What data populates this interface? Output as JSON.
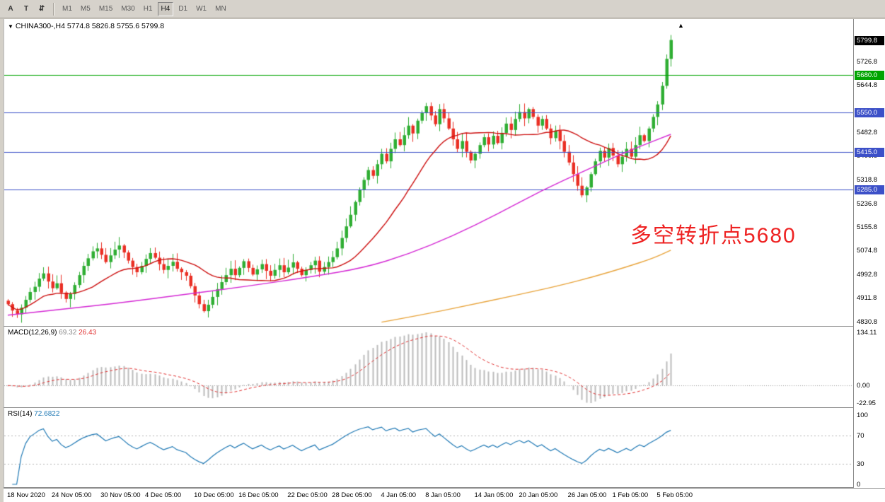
{
  "toolbar": {
    "tools": [
      {
        "name": "cursor-tool-button",
        "label": "A"
      },
      {
        "name": "text-tool-button",
        "label": "T"
      },
      {
        "name": "scroll-tool-button",
        "label": "⇵"
      }
    ],
    "timeframes": [
      {
        "label": "M1"
      },
      {
        "label": "M5"
      },
      {
        "label": "M15"
      },
      {
        "label": "M30"
      },
      {
        "label": "H1"
      },
      {
        "label": "H4",
        "active": true
      },
      {
        "label": "D1"
      },
      {
        "label": "W1"
      },
      {
        "label": "MN"
      }
    ]
  },
  "chart_data": {
    "type": "candlestick",
    "symbol_title": "CHINA300-,H4",
    "ohlc_text": "5774.8 5826.8 5755.6 5799.8",
    "annotation": "多空转折点5680",
    "annotation_color": "#ee2222",
    "collapse_triangle": "▼",
    "shift_marker": "▲",
    "price_range": [
      4815,
      5872
    ],
    "current_price": 5799.8,
    "current_price_label": "5799.8",
    "current_price_badge_color": "#000000",
    "levels": [
      {
        "value": 5680.0,
        "label": "5680.0",
        "color": "#00a400"
      },
      {
        "value": 5550.0,
        "label": "5550.0",
        "color": "#3c50c8"
      },
      {
        "value": 5415.0,
        "label": "5415.0",
        "color": "#3c50c8"
      },
      {
        "value": 5285.0,
        "label": "5285.0",
        "color": "#3c50c8"
      }
    ],
    "y_ticks": [
      5726.8,
      5644.8,
      5482.8,
      5400.8,
      5318.8,
      5236.8,
      5155.8,
      5074.8,
      4992.8,
      4911.8,
      4830.8
    ],
    "x_labels": [
      {
        "i": 0,
        "label": "18 Nov 2020"
      },
      {
        "i": 10,
        "label": "24 Nov 05:00"
      },
      {
        "i": 21,
        "label": "30 Nov 05:00"
      },
      {
        "i": 31,
        "label": "4 Dec 05:00"
      },
      {
        "i": 42,
        "label": "10 Dec 05:00"
      },
      {
        "i": 52,
        "label": "16 Dec 05:00"
      },
      {
        "i": 63,
        "label": "22 Dec 05:00"
      },
      {
        "i": 73,
        "label": "28 Dec 05:00"
      },
      {
        "i": 84,
        "label": "4 Jan 05:00"
      },
      {
        "i": 94,
        "label": "8 Jan 05:00"
      },
      {
        "i": 105,
        "label": "14 Jan 05:00"
      },
      {
        "i": 115,
        "label": "20 Jan 05:00"
      },
      {
        "i": 126,
        "label": "26 Jan 05:00"
      },
      {
        "i": 136,
        "label": "1 Feb 05:00"
      },
      {
        "i": 146,
        "label": "5 Feb 05:00"
      }
    ],
    "candles": {
      "up_color": "#2fae33",
      "down_color": "#ea2f24",
      "wick_base": 26,
      "closes": [
        4890,
        4868,
        4855,
        4878,
        4905,
        4932,
        4950,
        4978,
        4996,
        4968,
        4945,
        4962,
        4930,
        4908,
        4925,
        4956,
        4990,
        5022,
        5048,
        5072,
        5082,
        5060,
        5035,
        5058,
        5078,
        5092,
        5068,
        5040,
        5018,
        5000,
        5022,
        5046,
        5066,
        5050,
        5028,
        5008,
        5022,
        5036,
        5012,
        5000,
        4988,
        4952,
        4920,
        4890,
        4866,
        4888,
        4915,
        4942,
        4966,
        4990,
        5012,
        4990,
        5015,
        5038,
        5015,
        4992,
        5010,
        5028,
        5005,
        4988,
        5008,
        5024,
        5000,
        5016,
        5034,
        5012,
        4990,
        5008,
        5024,
        5040,
        5002,
        5018,
        5035,
        5052,
        5082,
        5118,
        5158,
        5198,
        5242,
        5285,
        5318,
        5352,
        5332,
        5372,
        5408,
        5382,
        5425,
        5458,
        5438,
        5472,
        5505,
        5478,
        5522,
        5548,
        5572,
        5540,
        5510,
        5562,
        5530,
        5495,
        5458,
        5425,
        5452,
        5415,
        5385,
        5408,
        5438,
        5465,
        5440,
        5470,
        5445,
        5480,
        5512,
        5490,
        5528,
        5552,
        5530,
        5562,
        5535,
        5505,
        5528,
        5495,
        5462,
        5488,
        5452,
        5415,
        5378,
        5338,
        5298,
        5265,
        5292,
        5338,
        5382,
        5418,
        5395,
        5428,
        5402,
        5372,
        5398,
        5425,
        5398,
        5438,
        5472,
        5452,
        5495,
        5535,
        5578,
        5642,
        5735,
        5800
      ]
    },
    "ma_lines": [
      {
        "name": "ma-fast-red",
        "color": "#cc0e0e",
        "type": "sma",
        "period": 20
      },
      {
        "name": "ma-mid-magenta",
        "color": "#d428d4",
        "type": "points",
        "points": [
          [
            0,
            4852
          ],
          [
            14,
            4875
          ],
          [
            26,
            4896
          ],
          [
            40,
            4924
          ],
          [
            54,
            4952
          ],
          [
            68,
            4984
          ],
          [
            80,
            5015
          ],
          [
            90,
            5062
          ],
          [
            100,
            5125
          ],
          [
            110,
            5200
          ],
          [
            120,
            5282
          ],
          [
            130,
            5352
          ],
          [
            138,
            5408
          ],
          [
            144,
            5445
          ],
          [
            149,
            5475
          ]
        ]
      },
      {
        "name": "ma-slow-orange",
        "color": "#e8a43c",
        "type": "points",
        "points": [
          [
            84,
            4828
          ],
          [
            94,
            4856
          ],
          [
            104,
            4888
          ],
          [
            114,
            4920
          ],
          [
            124,
            4954
          ],
          [
            132,
            4986
          ],
          [
            139,
            5018
          ],
          [
            145,
            5048
          ],
          [
            149,
            5076
          ]
        ]
      }
    ],
    "macd": {
      "name": "MACD(12,26,9)",
      "value_main": "69.32",
      "value_signal": "26.43",
      "fast": 12,
      "slow": 26,
      "signal": 9,
      "axis_max": "134.11",
      "axis_zero": "0.00",
      "axis_min": "-22.95",
      "hist_color": "#bcbcbc",
      "signal_color": "#e03030"
    },
    "rsi": {
      "name": "RSI(14)",
      "value": "72.6822",
      "period": 14,
      "color": "#1e78b4",
      "axis": [
        100,
        70,
        30,
        0
      ],
      "guides": [
        70,
        30
      ]
    }
  }
}
